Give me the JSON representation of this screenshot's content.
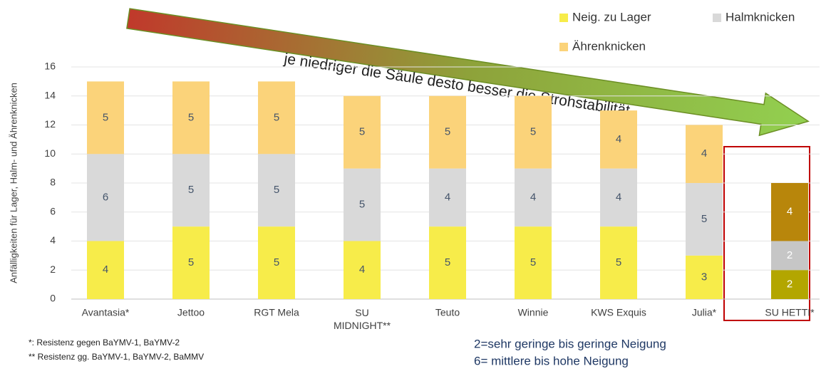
{
  "chart_data": {
    "type": "stacked_bar",
    "y_label": "Anfälligkeiten für Lager, Halm- und Ährenknicken",
    "annotation": "je niedriger die Säule desto besser die Strohstabilität",
    "categories": [
      "Avantasia*",
      "Jettoo",
      "RGT Mela",
      "SU MIDNIGHT**",
      "Teuto",
      "Winnie",
      "KWS Exquis",
      "Julia*",
      "SU HETTI*"
    ],
    "series": [
      {
        "name": "Neig. zu Lager",
        "color": "#f7ec4a",
        "values": [
          4,
          5,
          5,
          4,
          5,
          5,
          5,
          3,
          2
        ],
        "colors": [
          "#f7ec4a",
          "#f7ec4a",
          "#f7ec4a",
          "#f7ec4a",
          "#f7ec4a",
          "#f7ec4a",
          "#f7ec4a",
          "#f7ec4a",
          "#b3a600"
        ]
      },
      {
        "name": "Halmknicken",
        "color": "#d9d9d9",
        "values": [
          6,
          5,
          5,
          5,
          4,
          4,
          4,
          5,
          2
        ],
        "colors": [
          "#d9d9d9",
          "#d9d9d9",
          "#d9d9d9",
          "#d9d9d9",
          "#d9d9d9",
          "#d9d9d9",
          "#d9d9d9",
          "#d9d9d9",
          "#c6c6c6"
        ]
      },
      {
        "name": "Ährenknicken",
        "color": "#fbd37a",
        "values": [
          5,
          5,
          5,
          5,
          5,
          5,
          4,
          4,
          4
        ],
        "colors": [
          "#fbd37a",
          "#fbd37a",
          "#fbd37a",
          "#fbd37a",
          "#fbd37a",
          "#fbd37a",
          "#fbd37a",
          "#fbd37a",
          "#b8860b"
        ]
      }
    ],
    "ylim": [
      0,
      16
    ],
    "yticks": [
      0,
      2,
      4,
      6,
      8,
      10,
      12,
      14,
      16
    ],
    "grid": true,
    "legend": "top-right",
    "footnotes": [
      "*: Resistenz gegen BaYMV-1,  BaYMV-2",
      "** Resistenz gg. BaYMV-1,  BaYMV-2,  BaMMV"
    ],
    "scale_notes": [
      "2=sehr geringe bis geringe Neigung",
      "6= mittlere bis hohe Neigung"
    ]
  }
}
